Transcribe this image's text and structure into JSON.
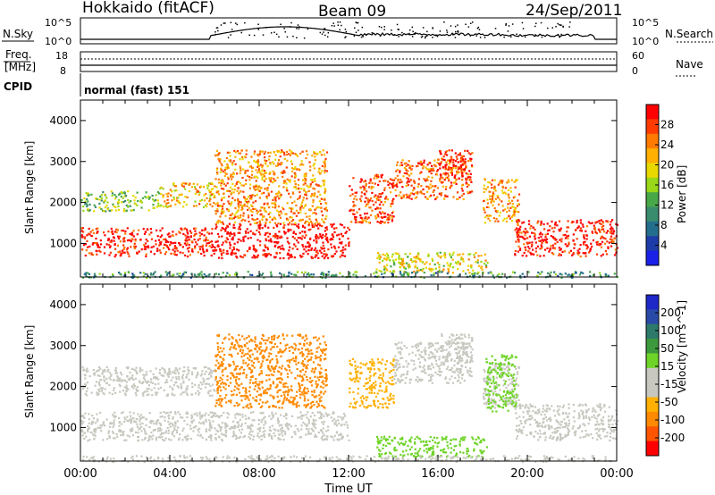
{
  "header": {
    "station": "Hokkaido (fitACF)",
    "beam": "Beam 09",
    "date": "24/Sep/2011"
  },
  "summary_panels": {
    "nsky_label": "N.Sky",
    "nsearch_label": "N.Search",
    "nsky_ticks": [
      "10^5",
      "10^0"
    ],
    "nsearch_ticks": [
      "10^5",
      "10^0"
    ],
    "freq_label_1": "Freq.",
    "freq_label_2": "[MHz]",
    "freq_ticks": [
      "18",
      "8"
    ],
    "nave_label": "Nave",
    "nave_ticks": [
      "60",
      "0"
    ],
    "cpid_label": "CPID",
    "cpid_value": "normal (fast) 151"
  },
  "colorbars": {
    "power": {
      "label": "Power [dB]",
      "ticks": [
        "28",
        "24",
        "20",
        "16",
        "12",
        "8",
        "4"
      ],
      "colors": [
        "#ff0000",
        "#ff3b00",
        "#ff7a00",
        "#ffb000",
        "#e8d800",
        "#98d818",
        "#48a848",
        "#3a8c6e",
        "#236e8c",
        "#1e3ca8",
        "#1a20e8"
      ]
    },
    "velocity": {
      "label": "Velocity [m s^-1]",
      "ticks": [
        "200",
        "100",
        "50",
        "15",
        "-15",
        "-50",
        "-100",
        "-200"
      ],
      "colors": [
        "#1e28c8",
        "#2a4aa8",
        "#2d7a6a",
        "#3c9a3c",
        "#6fd428",
        "#c8c8c0",
        "#c8c8c0",
        "#ffb000",
        "#ff8a00",
        "#ff5500",
        "#ff0000"
      ]
    }
  },
  "chart_data": [
    {
      "type": "heatmap",
      "title": "Power",
      "ylabel": "Slant Range [km]",
      "xlabel": "Time UT",
      "y_ticks": [
        "1000",
        "2000",
        "3000",
        "4000"
      ],
      "ylim": [
        180,
        4500
      ],
      "x_ticks": [
        "00:00",
        "04:00",
        "08:00",
        "12:00",
        "16:00",
        "20:00",
        "00:00"
      ],
      "xlim_hours": [
        0,
        24
      ],
      "bands": [
        {
          "t0": 0.0,
          "t1": 6.0,
          "r0": 700,
          "r1": 1400,
          "level": 28
        },
        {
          "t0": 6.0,
          "t1": 12.0,
          "r0": 650,
          "r1": 1500,
          "level": 30
        },
        {
          "t0": 12.0,
          "t1": 14.0,
          "r0": 1500,
          "r1": 2700,
          "level": 26
        },
        {
          "t0": 14.0,
          "t1": 17.5,
          "r0": 2100,
          "r1": 3100,
          "level": 24
        },
        {
          "t0": 16.0,
          "t1": 17.5,
          "r0": 2600,
          "r1": 3300,
          "level": 28
        },
        {
          "t0": 18.0,
          "t1": 19.6,
          "r0": 1500,
          "r1": 2600,
          "level": 22
        },
        {
          "t0": 19.4,
          "t1": 24.0,
          "r0": 700,
          "r1": 1600,
          "level": 28
        },
        {
          "t0": 0.0,
          "t1": 3.5,
          "r0": 1800,
          "r1": 2300,
          "level": 14
        },
        {
          "t0": 3.5,
          "t1": 6.0,
          "r0": 1900,
          "r1": 2500,
          "level": 20
        },
        {
          "t0": 13.2,
          "t1": 18.2,
          "r0": 300,
          "r1": 800,
          "level": 18
        },
        {
          "t0": 6.0,
          "t1": 11.0,
          "r0": 1500,
          "r1": 3300,
          "level": 22
        },
        {
          "t0": 0.0,
          "t1": 24.0,
          "r0": 180,
          "r1": 330,
          "level": 10
        }
      ]
    },
    {
      "type": "heatmap",
      "title": "Velocity",
      "ylabel": "Slant Range [km]",
      "xlabel": "Time UT",
      "y_ticks": [
        "1000",
        "2000",
        "3000",
        "4000"
      ],
      "ylim": [
        180,
        4500
      ],
      "x_ticks": [
        "00:00",
        "04:00",
        "08:00",
        "12:00",
        "16:00",
        "20:00",
        "00:00"
      ],
      "xlim_hours": [
        0,
        24
      ],
      "bands": [
        {
          "t0": 0.0,
          "t1": 12.0,
          "r0": 700,
          "r1": 1400,
          "level": 0
        },
        {
          "t0": 12.0,
          "t1": 14.0,
          "r0": 1500,
          "r1": 2700,
          "level": -40
        },
        {
          "t0": 14.0,
          "t1": 17.5,
          "r0": 2100,
          "r1": 3100,
          "level": 0
        },
        {
          "t0": 16.0,
          "t1": 17.5,
          "r0": 2600,
          "r1": 3300,
          "level": 0
        },
        {
          "t0": 18.0,
          "t1": 19.6,
          "r0": 1500,
          "r1": 2600,
          "level": 0
        },
        {
          "t0": 19.4,
          "t1": 24.0,
          "r0": 700,
          "r1": 1600,
          "level": 0
        },
        {
          "t0": 0.0,
          "t1": 6.0,
          "r0": 1800,
          "r1": 2500,
          "level": 0
        },
        {
          "t0": 13.2,
          "t1": 18.2,
          "r0": 300,
          "r1": 800,
          "level": 30
        },
        {
          "t0": 18.1,
          "t1": 19.5,
          "r0": 1400,
          "r1": 2800,
          "level": 30
        },
        {
          "t0": 6.0,
          "t1": 11.0,
          "r0": 1500,
          "r1": 3300,
          "level": -60
        },
        {
          "t0": 0.0,
          "t1": 24.0,
          "r0": 180,
          "r1": 330,
          "level": 0
        }
      ]
    }
  ]
}
